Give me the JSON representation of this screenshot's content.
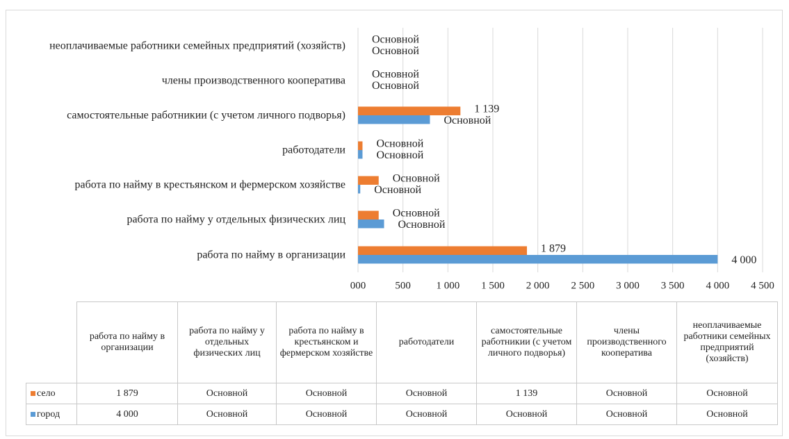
{
  "chart_data": {
    "type": "bar",
    "orientation": "horizontal",
    "categories": [
      "работа по найму в организации",
      "работа по найму у отдельных физических лиц",
      "работа по найму в крестьянском и фермерском хозяйстве",
      "работодатели",
      "самостоятельные работникии (с учетом личного подворья)",
      "члены производственного кооператива",
      "неоплачиваемые работники семейных предприятий (хозяйств)"
    ],
    "series": [
      {
        "name": "село",
        "color": "#ed7d31",
        "values": [
          1879,
          230,
          230,
          50,
          1139,
          0,
          0
        ],
        "value_labels": [
          "1 879",
          "Основной",
          "Основной",
          "Основной",
          "1 139",
          "Основной",
          "Основной"
        ]
      },
      {
        "name": "город",
        "color": "#5b9bd5",
        "values": [
          4000,
          290,
          25,
          50,
          800,
          0,
          0
        ],
        "value_labels": [
          "4 000",
          "Основной",
          "Основной",
          "Основной",
          "Основной",
          "Основной",
          "Основной"
        ]
      }
    ],
    "xlim": [
      0,
      4500
    ],
    "xticks": [
      {
        "value": 0,
        "label": "000"
      },
      500,
      {
        "value": 1000,
        "label": "1 000"
      },
      {
        "value": 1500,
        "label": "1 500"
      },
      {
        "value": 2000,
        "label": "2 000"
      },
      {
        "value": 2500,
        "label": "2 500"
      },
      {
        "value": 3000,
        "label": "3 000"
      },
      {
        "value": 3500,
        "label": "3 500"
      },
      {
        "value": 4000,
        "label": "4 000"
      },
      {
        "value": 4500,
        "label": "4 500"
      }
    ],
    "grid": true
  }
}
